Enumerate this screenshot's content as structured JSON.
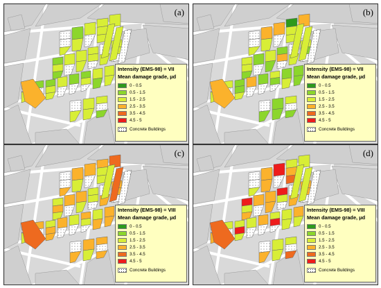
{
  "colors": {
    "0-0.5": "#2e9a1c",
    "0.5-1.5": "#8cd62c",
    "1.5-2.5": "#d8ee36",
    "2.5-3.5": "#fbb22c",
    "3.5-4.5": "#ee6a1f",
    "4.5-5": "#ee1c1c",
    "concrete": "#ffffff",
    "background_block": "#d9d9d9",
    "street": "#ffffff"
  },
  "legend": {
    "subtitle": "Mean damage grade, μd",
    "classes": [
      "0 - 0.5",
      "0.5 - 1.5",
      "1.5 - 2.5",
      "2.5 - 3.5",
      "3.5 - 4.5",
      "4.5 - 5"
    ],
    "concrete_label": "Concrete Buildings"
  },
  "panels": [
    {
      "label": "(a)",
      "intensity": "Intensity (EMS-98) = VII",
      "mix": [
        0,
        0.2,
        0.8,
        0,
        0,
        0
      ],
      "orange_extra": 0.05
    },
    {
      "label": "(b)",
      "intensity": "Intensity (EMS-98) = VII",
      "mix": [
        0.05,
        0.35,
        0.55,
        0.05,
        0,
        0
      ],
      "orange_extra": 0.05
    },
    {
      "label": "(c)",
      "intensity": "Intensity (EMS-98) = VIII",
      "mix": [
        0,
        0,
        0.35,
        0.6,
        0.05,
        0
      ],
      "orange_extra": 0
    },
    {
      "label": "(d)",
      "intensity": "Intensity (EMS-98) = VIII",
      "mix": [
        0,
        0,
        0.35,
        0.45,
        0.15,
        0.05
      ],
      "orange_extra": 0
    }
  ]
}
